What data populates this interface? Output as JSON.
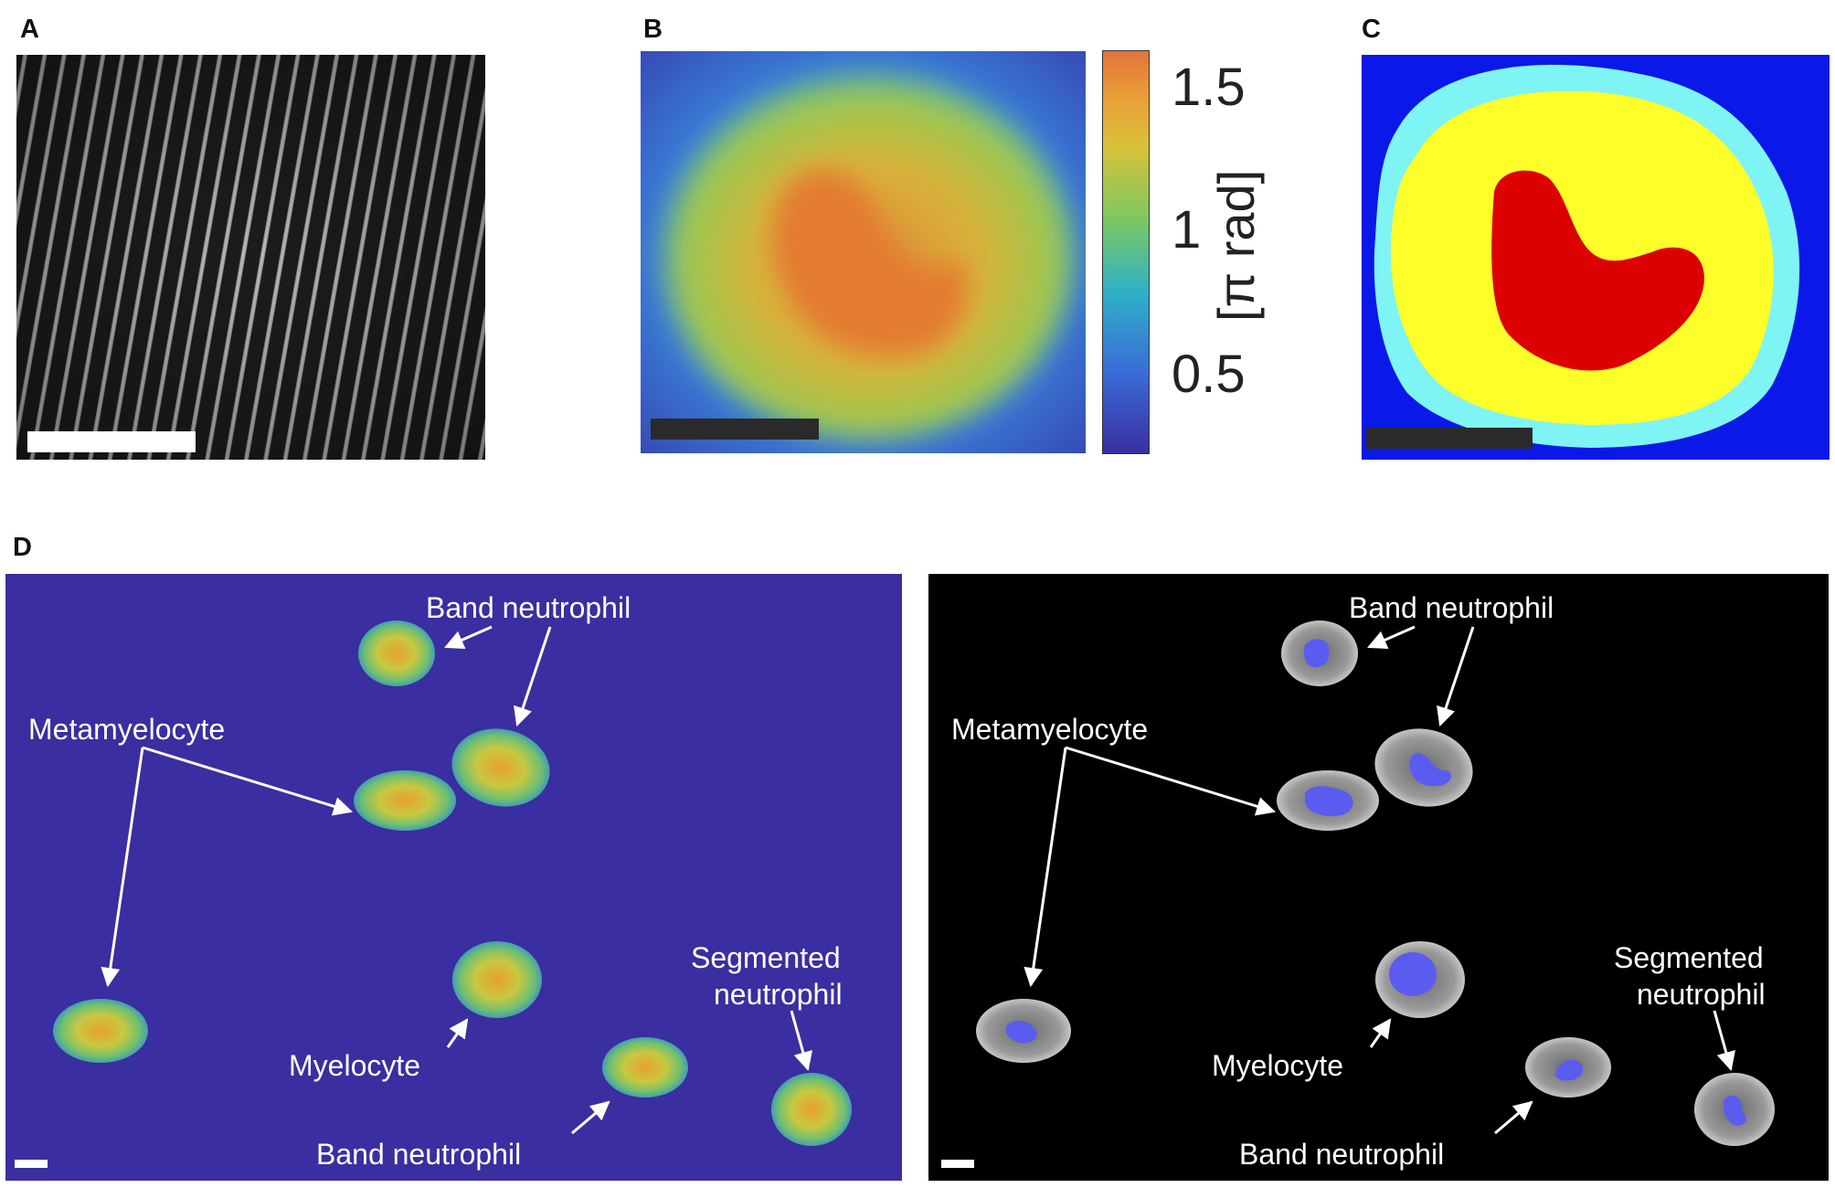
{
  "panels": {
    "a": {
      "label": "A"
    },
    "b": {
      "label": "B",
      "colorbar": {
        "ticks": [
          "1.5",
          "1",
          "0.5"
        ],
        "unit": "[π rad]",
        "range": [
          0.2,
          1.65
        ]
      }
    },
    "c": {
      "label": "C"
    },
    "d": {
      "label": "D"
    }
  },
  "d_annotations": {
    "band_top": "Band neutrophil",
    "metamyelocyte": "Metamyelocyte",
    "myelocyte": "Myelocyte",
    "segmented_line1": "Segmented",
    "segmented_line2": "neutrophil",
    "band_bottom": "Band neutrophil"
  },
  "colors": {
    "phase_background": "#3a2ea0",
    "seg_background": "#0a18e8",
    "seg_cytoplasm_edge": "#7ff4f4",
    "seg_cytoplasm": "#ffff2a",
    "seg_nucleus": "#dd0000",
    "nucleus_overlay": "#5a5cf0"
  }
}
